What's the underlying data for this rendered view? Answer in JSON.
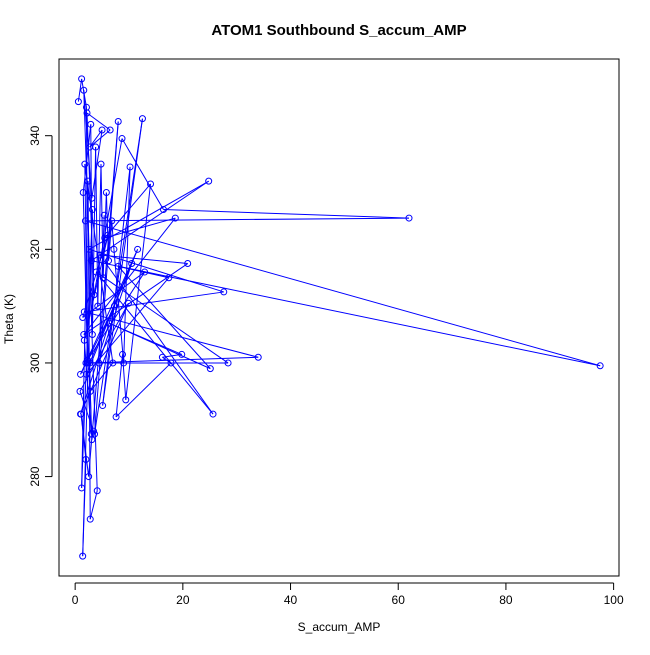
{
  "chart_data": {
    "type": "line",
    "title": "ATOM1 Southbound S_accum_AMP",
    "xlabel": "S_accum_AMP",
    "ylabel": "Theta (K)",
    "xlim": [
      -3,
      101
    ],
    "ylim": [
      262.5,
      353.5
    ],
    "x_ticks": [
      0,
      20,
      40,
      60,
      80,
      100
    ],
    "y_ticks": [
      280,
      300,
      320,
      340
    ],
    "series_color": "#0000ff",
    "marker": "open-circle",
    "grid": false,
    "legend": "none",
    "series": [
      {
        "points": [
          [
            0.6,
            346
          ],
          [
            1.2,
            350
          ],
          [
            2.1,
            345
          ],
          [
            2.3,
            300
          ],
          [
            1.5,
            330
          ],
          [
            2.9,
            342
          ],
          [
            3.2,
            305
          ],
          [
            3.8,
            338
          ],
          [
            4.2,
            310
          ],
          [
            4.8,
            335
          ],
          [
            5.2,
            315
          ],
          [
            5.8,
            330
          ],
          [
            6.2,
            318
          ],
          [
            6.8,
            325
          ],
          [
            7.2,
            320
          ],
          [
            9.0,
            300
          ],
          [
            10.2,
            334.5
          ],
          [
            5.1,
            292.5
          ],
          [
            12.5,
            343
          ],
          [
            3.6,
            287.5
          ],
          [
            8.0,
            342.5
          ],
          [
            2.5,
            280
          ],
          [
            1.1,
            291
          ],
          [
            2.0,
            283
          ],
          [
            1.4,
            266
          ],
          [
            3.2,
            327
          ],
          [
            1.2,
            278
          ],
          [
            2.4,
            332
          ],
          [
            2.8,
            272.5
          ],
          [
            4.1,
            277.5
          ],
          [
            1.6,
            348
          ],
          [
            3.1,
            329
          ],
          [
            5.0,
            341
          ],
          [
            2.7,
            338
          ],
          [
            6.5,
            341
          ],
          [
            2.2,
            344
          ],
          [
            3.5,
            312
          ],
          [
            8.7,
            339.5
          ],
          [
            16.4,
            327
          ],
          [
            62.0,
            325.5
          ],
          [
            1.9,
            325
          ],
          [
            97.5,
            299.5
          ],
          [
            3.0,
            318
          ],
          [
            24.8,
            332
          ],
          [
            2.6,
            320
          ],
          [
            27.6,
            312.5
          ],
          [
            1.7,
            309
          ],
          [
            34.0,
            301
          ],
          [
            2.0,
            300
          ],
          [
            28.4,
            300
          ],
          [
            3.9,
            316
          ],
          [
            25.6,
            291
          ],
          [
            4.6,
            319
          ],
          [
            20.9,
            317.5
          ],
          [
            1.6,
            305
          ],
          [
            18.6,
            325.5
          ],
          [
            5.5,
            322
          ],
          [
            14.0,
            331.5
          ],
          [
            9.4,
            293.5
          ],
          [
            8.8,
            301.5
          ],
          [
            7.6,
            290.5
          ],
          [
            17.8,
            300
          ],
          [
            16.2,
            301
          ],
          [
            19.8,
            301.5
          ],
          [
            6.3,
            307
          ],
          [
            25.1,
            299
          ],
          [
            8.0,
            317
          ],
          [
            17.4,
            315
          ],
          [
            2.1,
            298
          ],
          [
            11.6,
            320
          ],
          [
            1.0,
            298
          ],
          [
            7.3,
            310
          ],
          [
            1.0,
            291
          ],
          [
            9.9,
            310.5
          ],
          [
            0.9,
            295
          ],
          [
            3.4,
            288
          ],
          [
            3.1,
            286.5
          ],
          [
            2.8,
            295
          ],
          [
            7.0,
            300
          ],
          [
            1.8,
            335
          ],
          [
            2.3,
            300.5
          ],
          [
            12.9,
            316
          ],
          [
            1.4,
            308
          ],
          [
            6.1,
            322.5
          ],
          [
            1.7,
            304
          ],
          [
            3.0,
            287.5
          ],
          [
            2.7,
            300
          ],
          [
            10.5,
            317.5
          ],
          [
            4.4,
            300
          ],
          [
            5.4,
            326
          ]
        ]
      }
    ]
  }
}
